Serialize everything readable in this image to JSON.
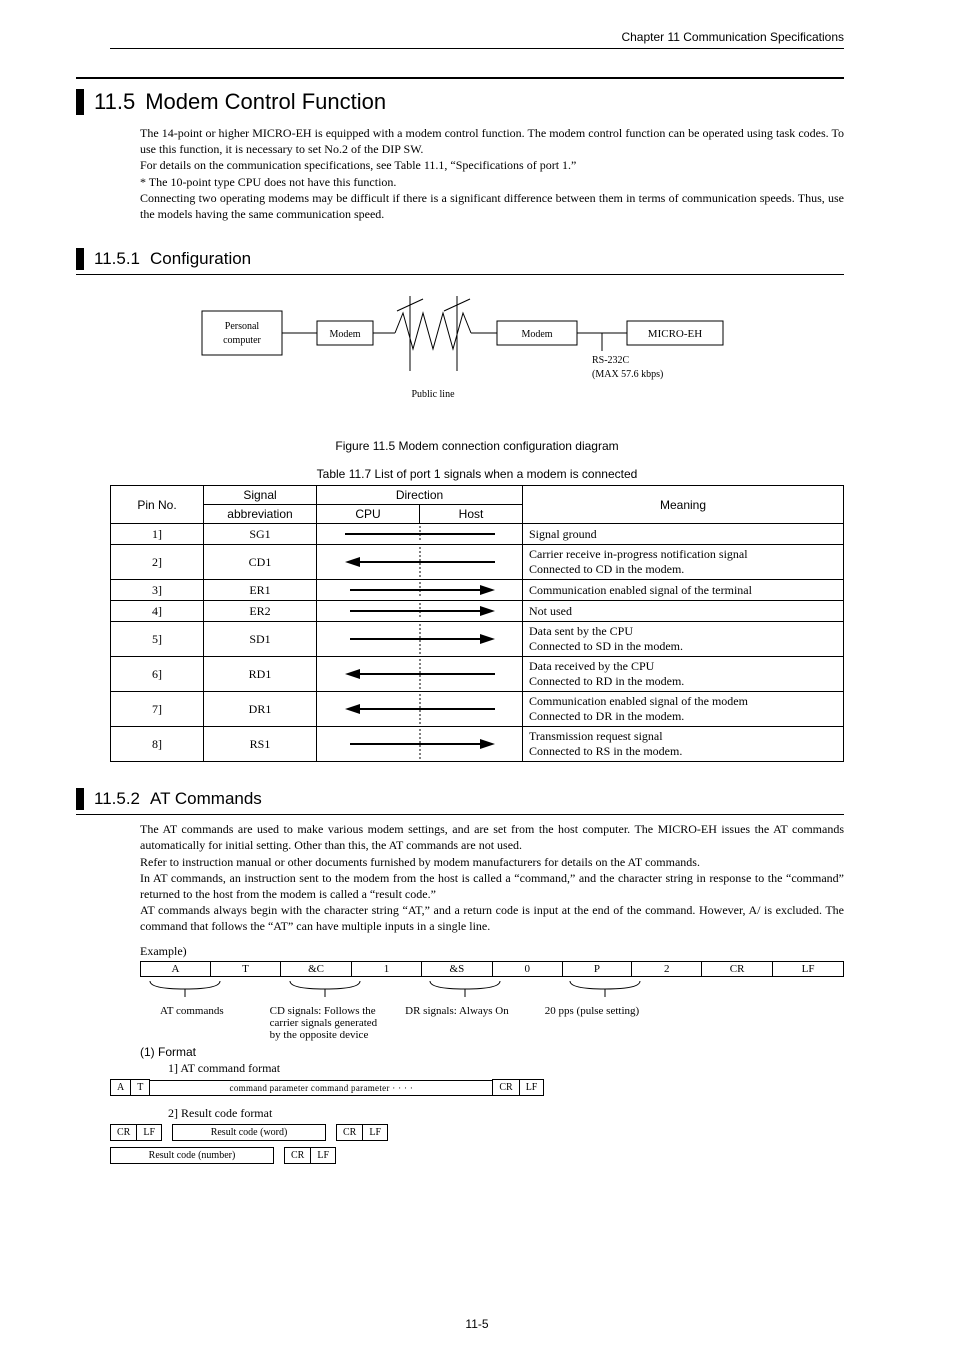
{
  "running_head": "Chapter 11  Communication Specifications",
  "section_no": "11.5",
  "section_title": "Modem Control Function",
  "section_body_lines": [
    "The 14-point or higher MICRO-EH is equipped with a modem control function. The modem control function can be operated using task codes. To use this function, it is necessary to set No.2 of the DIP SW.",
    "For details on the communication specifications, see Table 11.1, “Specifications of port 1.”",
    "* The 10-point type CPU does not have this function.",
    "Connecting two operating modems may be difficult if there is a significant difference between them in terms of communication speeds. Thus, use the models having the same communication speed."
  ],
  "sub1_no": "11.5.1",
  "sub1_title": "Configuration",
  "diagram": {
    "pc": "Personal\ncomputer",
    "modem1": "Modem",
    "modem2": "Modem",
    "micro": "MICRO-EH",
    "rs232": "RS-232C",
    "max": "(MAX 57.6 kbps)",
    "public_line": "Public line"
  },
  "caption_fig": "Figure 11.5 Modem connection configuration diagram",
  "caption_tbl": "Table 11.7 List of port 1 signals when a modem is connected",
  "pin_header": {
    "pin": "Pin No.",
    "sig": "Signal",
    "abbr": "abbreviation",
    "dir": "Direction",
    "cpu": "CPU",
    "host": "Host",
    "mean": "Meaning"
  },
  "pin_rows": [
    {
      "pin": "1]",
      "sig": "SG1",
      "arrow": "line-solid",
      "meaning": [
        "Signal ground"
      ]
    },
    {
      "pin": "2]",
      "sig": "CD1",
      "arrow": "left",
      "meaning": [
        "Carrier receive in-progress notification signal",
        "Connected to CD in the modem."
      ]
    },
    {
      "pin": "3]",
      "sig": "ER1",
      "arrow": "right",
      "meaning": [
        "Communication enabled signal of the terminal"
      ]
    },
    {
      "pin": "4]",
      "sig": "ER2",
      "arrow": "right",
      "meaning": [
        "Not used"
      ]
    },
    {
      "pin": "5]",
      "sig": "SD1",
      "arrow": "right",
      "meaning": [
        "Data sent by the CPU",
        "Connected to SD in the modem."
      ]
    },
    {
      "pin": "6]",
      "sig": "RD1",
      "arrow": "left",
      "meaning": [
        "Data received by the CPU",
        "Connected to RD in the modem."
      ]
    },
    {
      "pin": "7]",
      "sig": "DR1",
      "arrow": "left",
      "meaning": [
        "Communication enabled signal of the modem",
        "Connected to DR in the modem."
      ]
    },
    {
      "pin": "8]",
      "sig": "RS1",
      "arrow": "right",
      "meaning": [
        "Transmission request signal",
        "Connected to RS in the modem."
      ]
    }
  ],
  "sub2_no": "11.5.2",
  "sub2_title": "AT Commands",
  "sub2_body_lines": [
    "The AT commands are used to make various modem settings, and are set from the host computer. The MICRO-EH issues the AT commands automatically for initial setting. Other than this, the AT commands are not used.",
    "Refer to instruction manual or other documents furnished by modem manufacturers for details on the AT commands.",
    "In AT commands, an instruction sent to the modem from the host is called a “command,” and the character string in response to the “command” returned to the host from the modem is called a “result code.”",
    "AT commands always begin with the character string “AT,” and a return code is input at the end of the command. However, A/ is excluded. The command that follows the “AT” can have multiple inputs in a single line."
  ],
  "example_label": "Example)",
  "example_cells": [
    "A",
    "T",
    "&C",
    "1",
    "&S",
    "0",
    "P",
    "2",
    "CR",
    "LF"
  ],
  "example_brace_labels": {
    "at": "AT commands",
    "cd_l1": "CD signals: Follows the",
    "cd_l2": "carrier signals generated",
    "cd_l3": "by the opposite device",
    "dr": "DR signals: Always On",
    "pps": "20 pps (pulse setting)"
  },
  "formats": {
    "heading": "(1)    Format",
    "at_label": "1]     AT command format",
    "at_cells": [
      "A",
      "T",
      "command  parameter  command parameter  · · · ·",
      "CR",
      "LF"
    ],
    "rc_label": "2]     Result code format",
    "rc_word_cells": [
      "CR",
      "LF",
      "Result code (word)",
      "CR",
      "LF"
    ],
    "rc_num_cells": [
      "Result code (number)",
      "CR",
      "LF"
    ]
  },
  "page_num": "11-5"
}
